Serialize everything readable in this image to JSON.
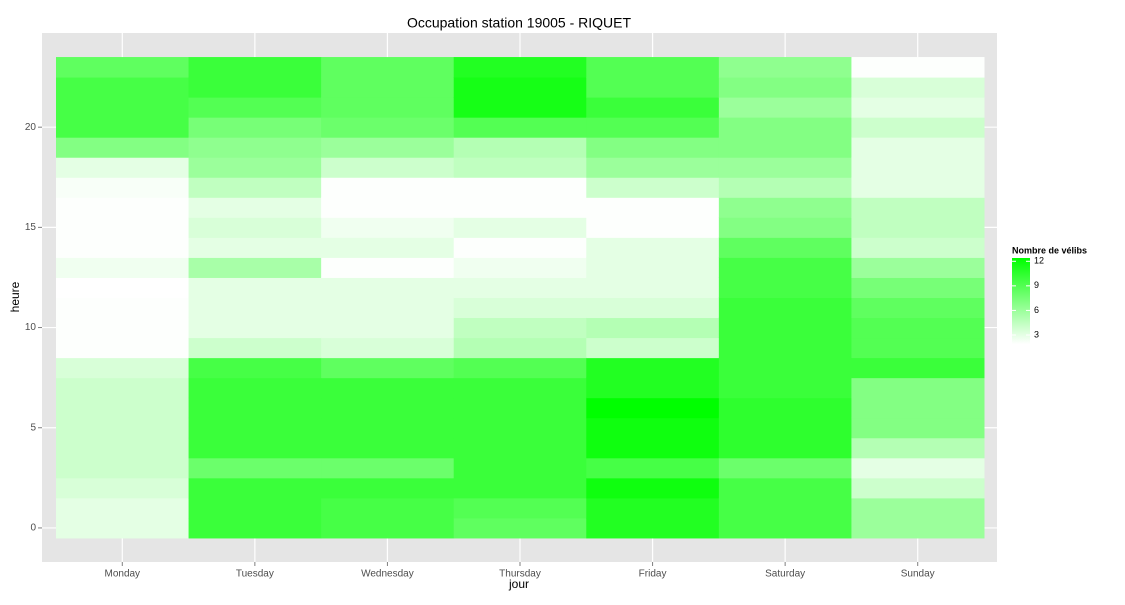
{
  "chart_data": {
    "type": "heatmap",
    "title": "Occupation station 19005 - RIQUET",
    "x_label": "jour",
    "y_label": "heure",
    "categories": [
      "Monday",
      "Tuesday",
      "Wednesday",
      "Thursday",
      "Friday",
      "Saturday",
      "Sunday"
    ],
    "y": [
      0,
      1,
      2,
      3,
      4,
      5,
      6,
      7,
      8,
      9,
      10,
      11,
      12,
      13,
      14,
      15,
      16,
      17,
      18,
      19,
      20,
      21,
      22,
      23
    ],
    "z": [
      [
        3,
        3,
        3.5,
        4,
        4,
        4,
        4,
        4,
        3.5,
        2,
        2,
        2,
        1.9,
        2.5,
        2,
        2,
        2,
        2.2,
        3,
        7,
        9.5,
        9.5,
        9.5,
        8.5
      ],
      [
        10,
        10,
        10,
        8,
        10,
        10,
        10,
        10,
        9.5,
        4,
        3,
        3,
        3,
        5.5,
        3,
        3.5,
        3,
        4.5,
        6,
        6.5,
        7.5,
        9,
        10,
        10
      ],
      [
        9.5,
        9.5,
        10,
        8,
        10,
        10,
        10,
        10,
        8.5,
        3.5,
        3,
        3,
        3,
        2,
        3,
        2.5,
        2,
        2,
        4,
        6,
        8,
        8.5,
        8.5,
        8.5
      ],
      [
        8.5,
        9,
        10,
        10,
        10,
        10,
        10,
        10,
        9,
        5,
        4.5,
        3.5,
        3,
        2.5,
        2,
        3,
        2,
        2,
        4.5,
        5,
        9,
        11.5,
        11.5,
        11
      ],
      [
        11,
        11,
        11.8,
        9.5,
        11.8,
        11.8,
        12.4,
        11,
        11,
        4,
        5,
        3.5,
        3,
        3,
        3,
        2,
        2,
        4,
        6,
        7,
        9,
        10,
        9,
        9
      ],
      [
        9.5,
        9.5,
        9.5,
        8,
        10.5,
        10.5,
        10.5,
        10,
        10,
        10,
        10,
        10,
        9.5,
        9.5,
        8.5,
        7,
        6.5,
        5,
        6,
        7,
        7,
        6,
        7,
        6.5
      ],
      [
        6,
        6,
        4,
        3,
        5,
        7,
        7,
        7,
        10,
        9,
        9,
        8.5,
        7.5,
        6,
        4,
        4.5,
        4.5,
        3,
        3,
        3,
        4,
        3,
        3.5,
        2
      ]
    ],
    "ylim": [
      -1.7,
      24.7
    ],
    "yticks": [
      0,
      5,
      10,
      15,
      20
    ],
    "grid": true,
    "legend_title": "Nombre de vélibs",
    "fill_lim": [
      1.9,
      12.4
    ],
    "fill_ticks": [
      3,
      6,
      9,
      12
    ],
    "colors": [
      "#ffffff",
      "#00ff00"
    ]
  }
}
